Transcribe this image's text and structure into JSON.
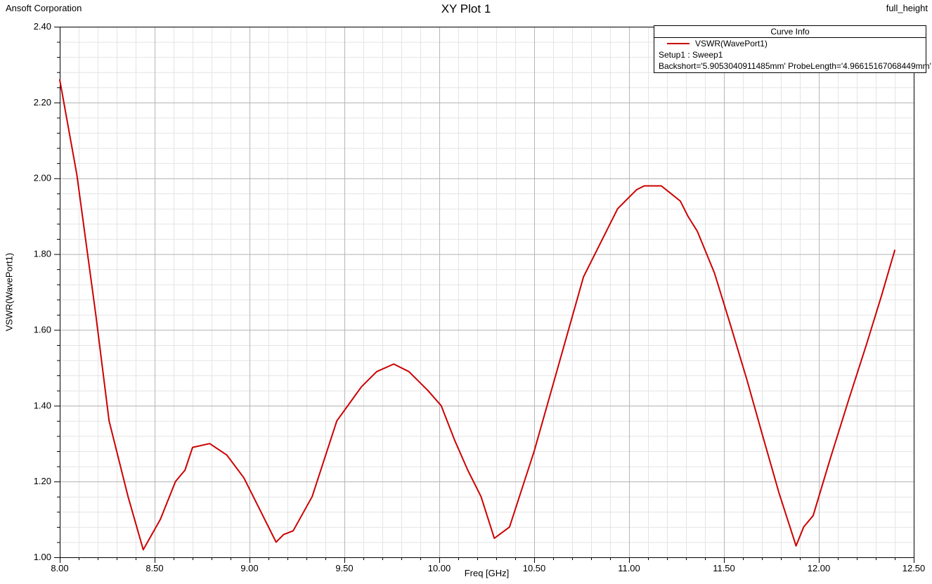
{
  "header": {
    "left": "Ansoft Corporation",
    "title": "XY Plot 1",
    "right": "full_height"
  },
  "legend": {
    "title": "Curve Info",
    "series_label": "VSWR(WavePort1)",
    "setup_line": "Setup1 : Sweep1",
    "params_line": "Backshort='5.9053040911485mm' ProbeLength='4.96615167068449mm'"
  },
  "colors": {
    "curve": "#cc0000",
    "grid_minor": "#e4e4e4",
    "grid_major": "#b6b6b6",
    "axis": "#000000",
    "background": "#ffffff"
  },
  "chart_data": {
    "type": "line",
    "title": "XY Plot 1",
    "xlabel": "Freq [GHz]",
    "ylabel": "VSWR(WavePort1)",
    "xlim": [
      8.0,
      12.5
    ],
    "ylim": [
      1.0,
      2.4
    ],
    "x_major_step": 0.5,
    "x_minor_step": 0.1,
    "y_major_step": 0.2,
    "y_minor_step": 0.04,
    "x_tick_labels": [
      "8.00",
      "8.50",
      "9.00",
      "9.50",
      "10.00",
      "10.50",
      "11.00",
      "11.50",
      "12.00",
      "12.50"
    ],
    "y_tick_labels": [
      "1.00",
      "1.20",
      "1.40",
      "1.60",
      "1.80",
      "2.00",
      "2.20",
      "2.40"
    ],
    "grid": true,
    "legend_position": "top-right",
    "series": [
      {
        "name": "VSWR(WavePort1)",
        "color": "#cc0000",
        "points": [
          [
            8.0,
            2.26
          ],
          [
            8.09,
            2.01
          ],
          [
            8.19,
            1.64
          ],
          [
            8.26,
            1.36
          ],
          [
            8.36,
            1.16
          ],
          [
            8.44,
            1.02
          ],
          [
            8.53,
            1.1
          ],
          [
            8.57,
            1.15
          ],
          [
            8.61,
            1.2
          ],
          [
            8.66,
            1.23
          ],
          [
            8.7,
            1.29
          ],
          [
            8.79,
            1.3
          ],
          [
            8.88,
            1.27
          ],
          [
            8.97,
            1.21
          ],
          [
            9.03,
            1.15
          ],
          [
            9.08,
            1.1
          ],
          [
            9.14,
            1.04
          ],
          [
            9.18,
            1.06
          ],
          [
            9.23,
            1.07
          ],
          [
            9.33,
            1.16
          ],
          [
            9.46,
            1.36
          ],
          [
            9.59,
            1.45
          ],
          [
            9.67,
            1.49
          ],
          [
            9.76,
            1.51
          ],
          [
            9.84,
            1.49
          ],
          [
            9.94,
            1.44
          ],
          [
            10.01,
            1.4
          ],
          [
            10.08,
            1.31
          ],
          [
            10.15,
            1.23
          ],
          [
            10.22,
            1.16
          ],
          [
            10.29,
            1.05
          ],
          [
            10.37,
            1.08
          ],
          [
            10.5,
            1.28
          ],
          [
            10.63,
            1.51
          ],
          [
            10.76,
            1.74
          ],
          [
            10.83,
            1.81
          ],
          [
            10.9,
            1.88
          ],
          [
            10.94,
            1.92
          ],
          [
            11.0,
            1.95
          ],
          [
            11.04,
            1.97
          ],
          [
            11.08,
            1.98
          ],
          [
            11.17,
            1.98
          ],
          [
            11.22,
            1.96
          ],
          [
            11.27,
            1.94
          ],
          [
            11.31,
            1.9
          ],
          [
            11.36,
            1.86
          ],
          [
            11.45,
            1.75
          ],
          [
            11.53,
            1.62
          ],
          [
            11.62,
            1.47
          ],
          [
            11.71,
            1.31
          ],
          [
            11.79,
            1.17
          ],
          [
            11.88,
            1.03
          ],
          [
            11.92,
            1.08
          ],
          [
            11.97,
            1.11
          ],
          [
            12.06,
            1.26
          ],
          [
            12.16,
            1.42
          ],
          [
            12.25,
            1.56
          ],
          [
            12.33,
            1.69
          ],
          [
            12.4,
            1.81
          ]
        ]
      }
    ]
  }
}
